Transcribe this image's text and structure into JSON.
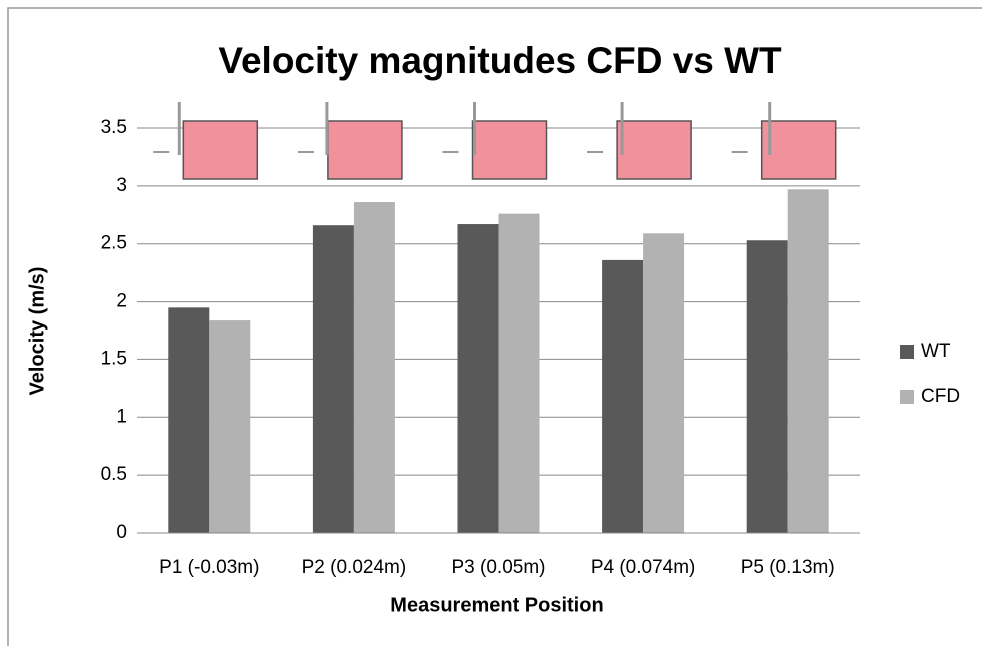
{
  "chart_data": {
    "type": "bar",
    "title": "Velocity magnitudes CFD vs WT",
    "x_label": "Measurement Position",
    "y_label": "Velocity  (m/s)",
    "categories": [
      "P1 (-0.03m)",
      "P2 (0.024m)",
      "P3 (0.05m)",
      "P4 (0.074m)",
      "P5 (0.13m)"
    ],
    "series": [
      {
        "name": "WT",
        "color": "#595959",
        "values": [
          1.95,
          2.66,
          2.67,
          2.36,
          2.53
        ]
      },
      {
        "name": "CFD",
        "color": "#b2b2b2",
        "values": [
          1.84,
          2.86,
          2.76,
          2.59,
          2.97
        ]
      }
    ],
    "ylim": [
      0,
      3.5
    ],
    "yticks": [
      0,
      0.5,
      1,
      1.5,
      2,
      2.5,
      3,
      3.5
    ],
    "grid": true,
    "legend": "right"
  }
}
